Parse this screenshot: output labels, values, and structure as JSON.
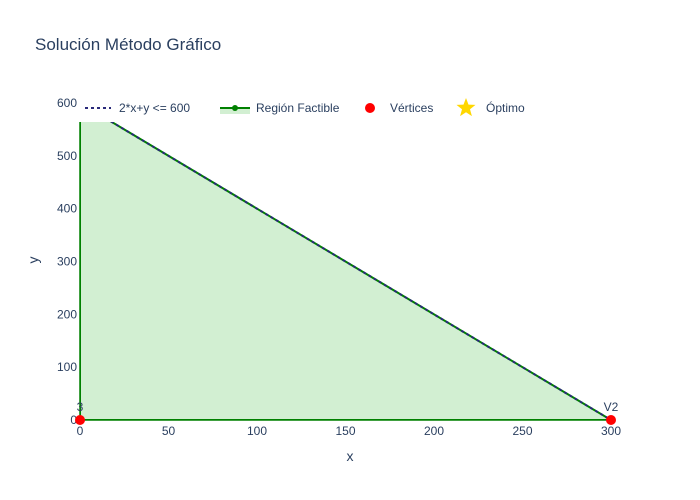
{
  "chart_data": {
    "type": "line",
    "title": "Solución Método Gráfico",
    "xlabel": "x",
    "ylabel": "y",
    "xlim": [
      0,
      300
    ],
    "ylim": [
      0,
      600
    ],
    "x_ticks": [
      0,
      50,
      100,
      150,
      200,
      250,
      300
    ],
    "y_ticks": [
      0,
      100,
      200,
      300,
      400,
      500,
      600
    ],
    "grid": false,
    "legend_position": "top",
    "series": [
      {
        "name": "2*x+y <= 600",
        "kind": "constraint-line",
        "style": "dotted",
        "color": "#2a2a7a",
        "x": [
          0,
          300
        ],
        "y": [
          600,
          0
        ]
      },
      {
        "name": "Región Factible",
        "kind": "filled-polygon",
        "color": "#008000",
        "fill": "#d2efd2",
        "x": [
          0,
          300,
          0,
          0
        ],
        "y": [
          0,
          0,
          600,
          0
        ]
      },
      {
        "name": "Vértices",
        "kind": "markers",
        "color": "#ff0000",
        "points": [
          {
            "x": 0,
            "y": 0,
            "label": "3"
          },
          {
            "x": 300,
            "y": 0,
            "label": "V2"
          }
        ]
      },
      {
        "name": "Óptimo",
        "kind": "star-marker",
        "color": "#ffd700",
        "points": []
      }
    ]
  }
}
